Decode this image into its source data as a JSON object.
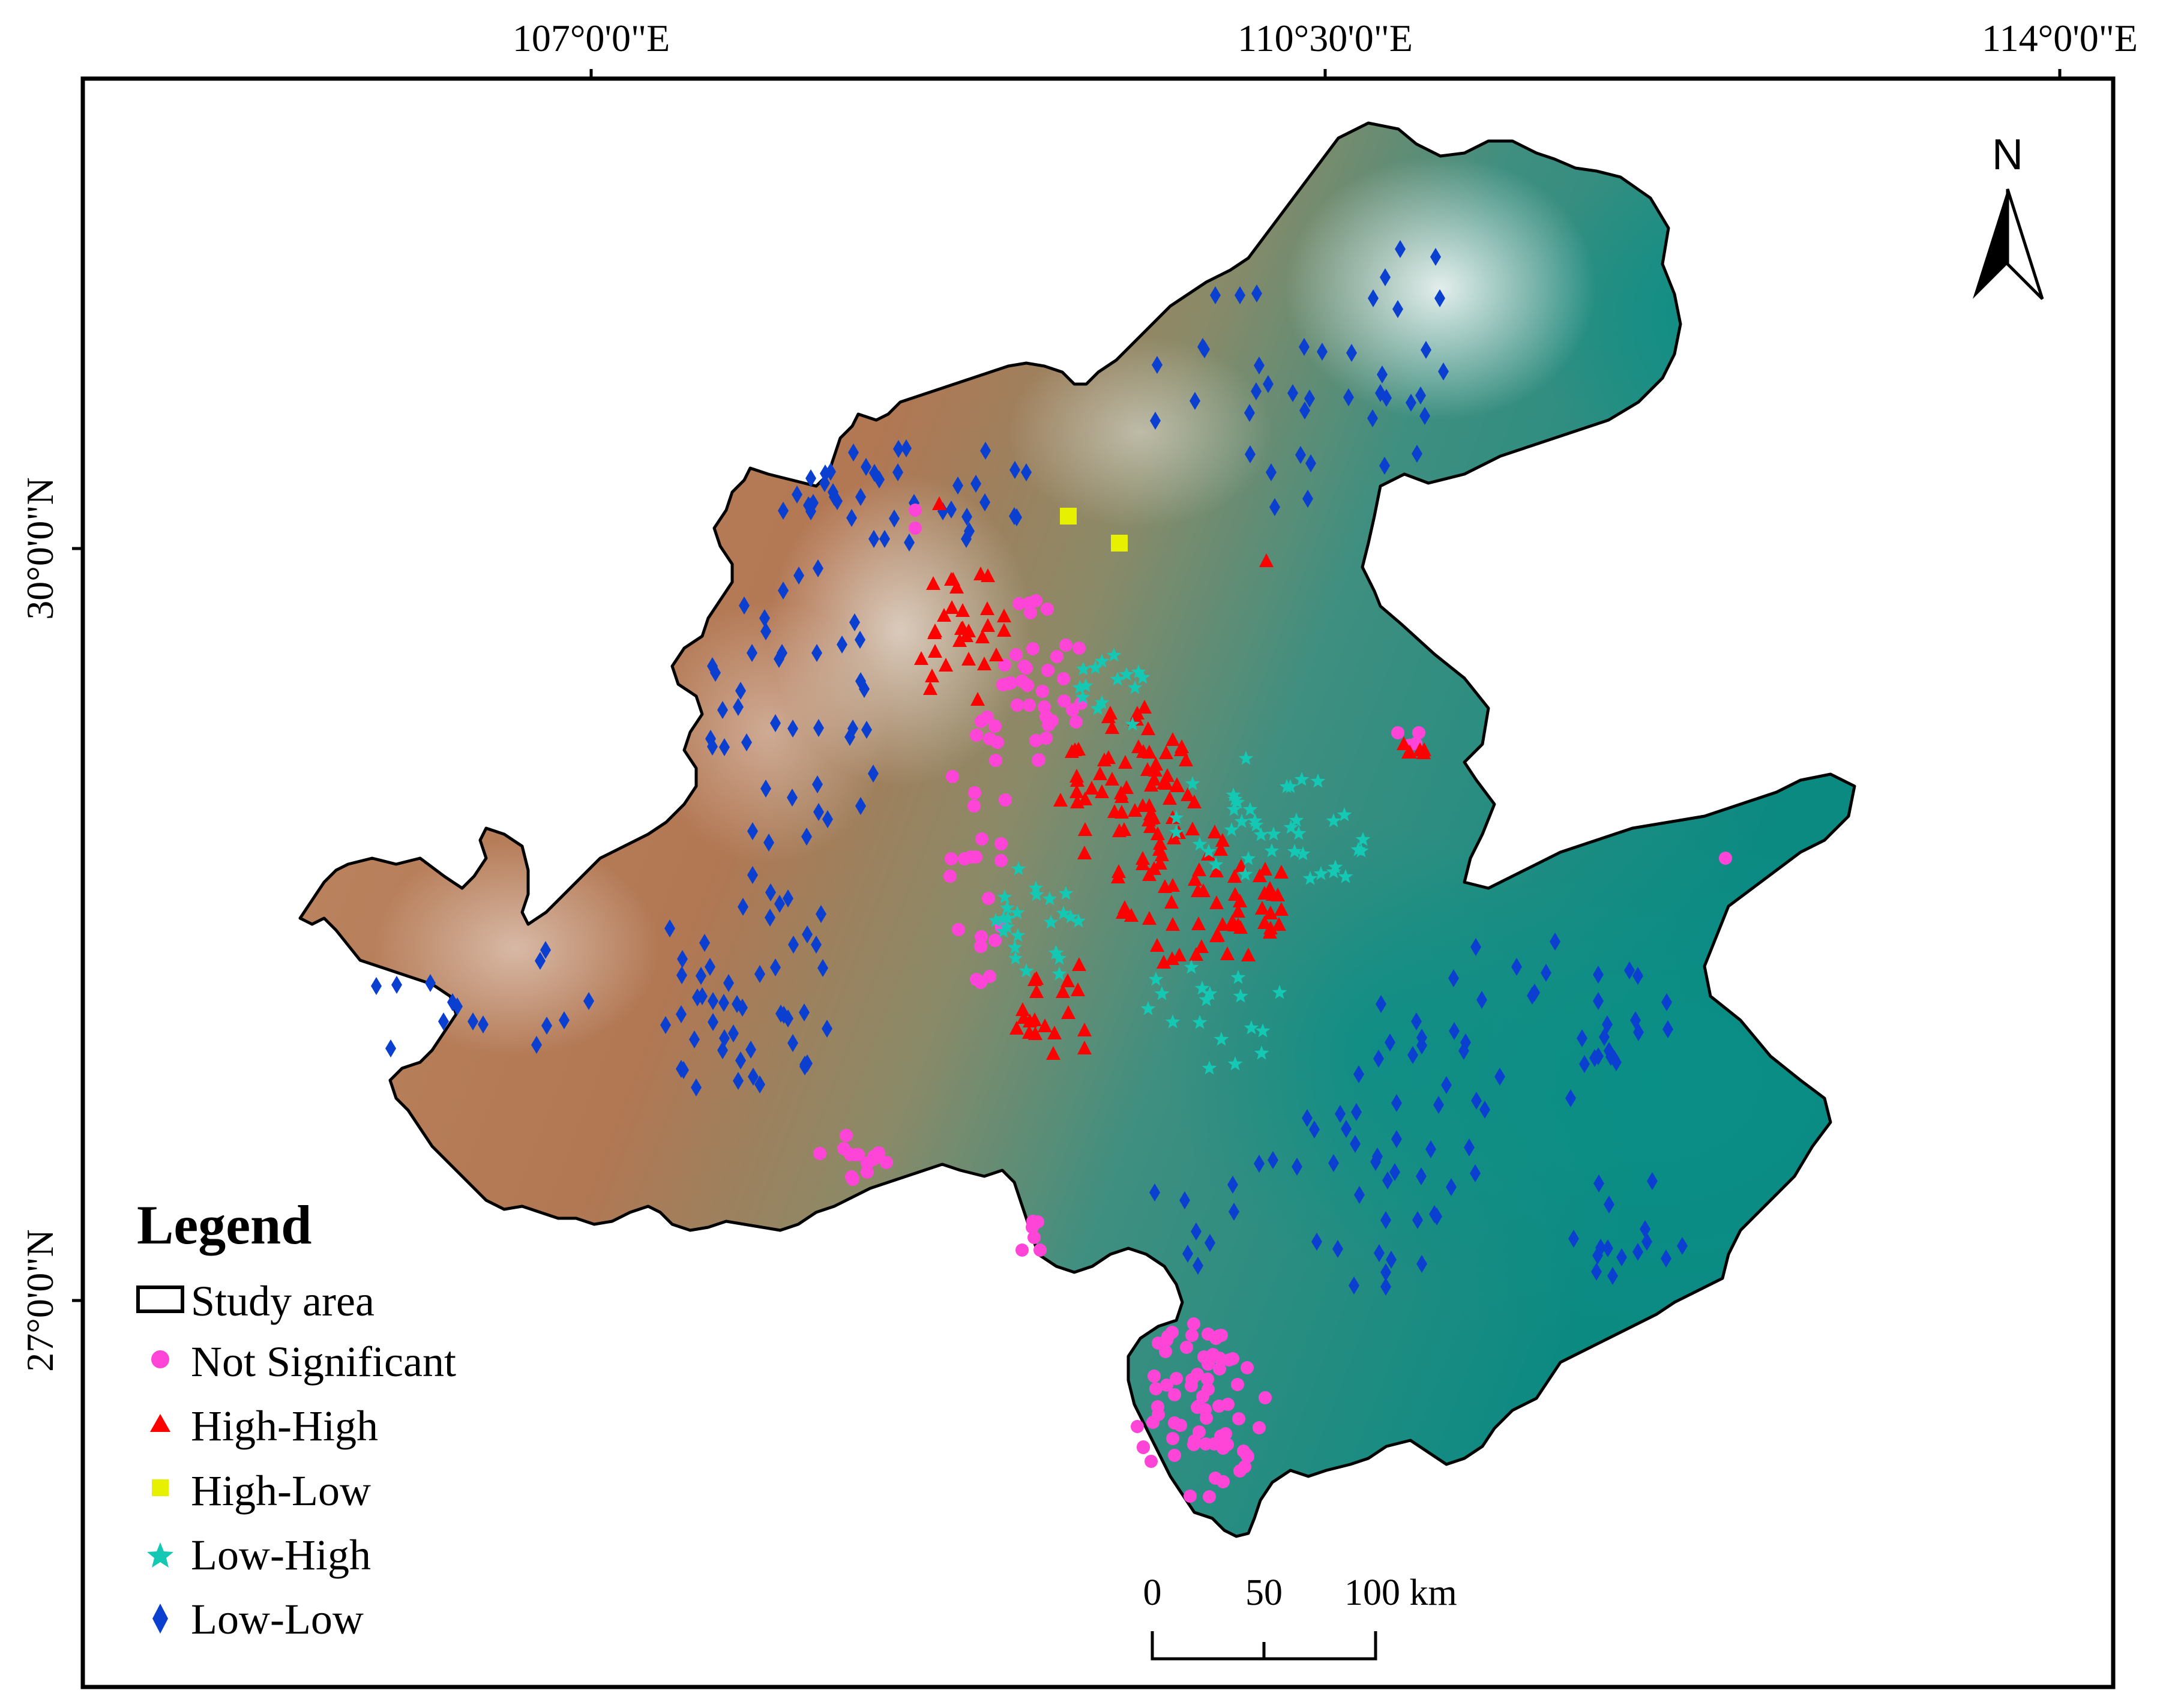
{
  "map": {
    "lon_labels": [
      "107°0'0\"E",
      "110°30'0\"E",
      "114°0'0\"E"
    ],
    "lat_labels": [
      "30°0'0\"N",
      "27°0'0\"N"
    ],
    "north_label": "N",
    "legend": {
      "title": "Legend",
      "items": [
        {
          "label": "Study area",
          "symbol": "rect-outline",
          "color": "#000000"
        },
        {
          "label": "Not Significant",
          "symbol": "circle",
          "color": "#ff44d8"
        },
        {
          "label": "High-High",
          "symbol": "triangle",
          "color": "#ff0000"
        },
        {
          "label": "High-Low",
          "symbol": "square",
          "color": "#e6f000"
        },
        {
          "label": "Low-High",
          "symbol": "star",
          "color": "#14c8b4"
        },
        {
          "label": "Low-Low",
          "symbol": "diamond",
          "color": "#0a3fd0"
        }
      ]
    },
    "scale_bar": {
      "ticks": [
        "0",
        "50",
        "100 km"
      ]
    },
    "colors": {
      "terrain_high": "#b57a52",
      "terrain_low": "#0e8f86",
      "terrain_peak": "#ffffff",
      "frame": "#000000"
    }
  }
}
